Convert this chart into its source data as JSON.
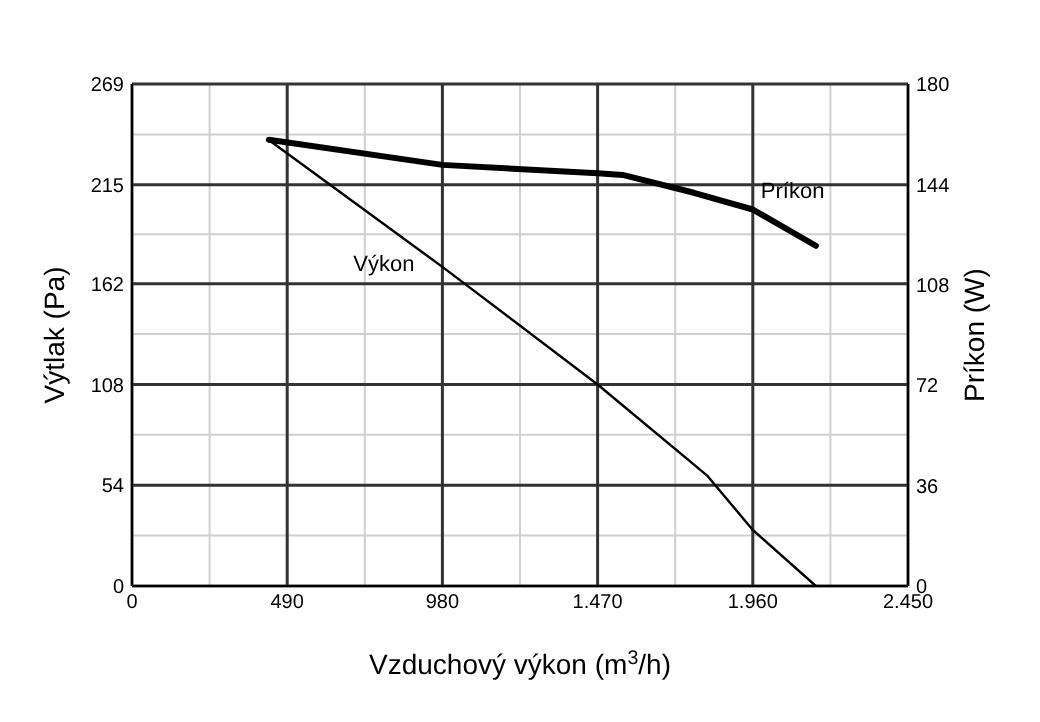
{
  "chart_data": {
    "type": "line",
    "xlabel": "Vzduchový výkon (m$^{3}$/h)",
    "ylabel": "Výtlak (Pa)",
    "y2label": "Príkon (W)",
    "xlim": [
      0,
      2450
    ],
    "xticks": [
      0,
      490,
      980,
      {
        "value": 1470,
        "label": "1.470"
      },
      {
        "value": 1960,
        "label": "1.960"
      },
      {
        "value": 2450,
        "label": "2.450"
      }
    ],
    "ylim": [
      0,
      269
    ],
    "yticks": [
      0,
      54,
      108,
      162,
      215,
      269
    ],
    "y2lim": [
      0,
      180
    ],
    "y2ticks": [
      0,
      36,
      72,
      108,
      144,
      180
    ],
    "grid": true,
    "marker": "none",
    "line_style": "solid",
    "series": [
      {
        "name": "Výkon",
        "color": "#000000",
        "x": [
          432,
          980,
          1470,
          1817,
          1960,
          2159
        ],
        "values": [
          239,
          171,
          108,
          59,
          30,
          0
        ]
      },
      {
        "name": "Príkon",
        "color": "#000000",
        "axis": "y2",
        "x": [
          432,
          980,
          1470,
          1549,
          1774,
          1960,
          2159
        ],
        "values": [
          160,
          151,
          148,
          147.4,
          141,
          135,
          122
        ]
      }
    ]
  }
}
